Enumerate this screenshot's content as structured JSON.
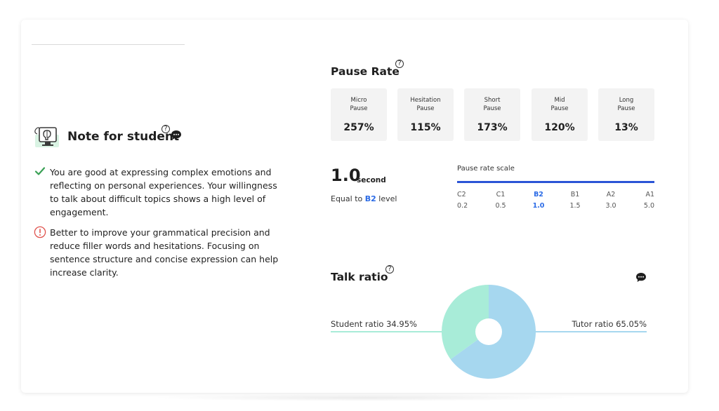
{
  "colors": {
    "accent_blue": "#2b6be6",
    "scale_bar": "#2b55d6",
    "student_color": "#a8ecd8",
    "tutor_color": "#a6d7ef",
    "check_green": "#3aa055",
    "warn_red": "#e0544f"
  },
  "note": {
    "title": "Note for student",
    "icon": "brain-monitor-icon",
    "items": [
      {
        "icon": "check-icon",
        "text": "You are good at expressing complex emotions and reflecting on personal experiences. Your willingness to talk about difficult topics shows a high level of engagement."
      },
      {
        "icon": "exclamation-circle-icon",
        "text": "Better to improve your grammatical precision and reduce filler words and hesitations. Focusing on sentence structure and concise expression can help increase clarity."
      }
    ]
  },
  "pause_rate": {
    "title": "Pause Rate",
    "boxes": [
      {
        "label_line1": "Micro",
        "label_line2": "Pause",
        "value": "257%"
      },
      {
        "label_line1": "Hesitation",
        "label_line2": "Pause",
        "value": "115%"
      },
      {
        "label_line1": "Short",
        "label_line2": "Pause",
        "value": "173%"
      },
      {
        "label_line1": "Mid",
        "label_line2": "Pause",
        "value": "120%"
      },
      {
        "label_line1": "Long",
        "label_line2": "Pause",
        "value": "13%"
      }
    ],
    "seconds_value": "1.0",
    "seconds_unit": "second",
    "equal_prefix": "Equal to",
    "equal_level": "B2",
    "equal_suffix": "level",
    "scale_title": "Pause rate scale",
    "scale": [
      {
        "level": "C2",
        "value": "0.2"
      },
      {
        "level": "C1",
        "value": "0.5"
      },
      {
        "level": "B2",
        "value": "1.0"
      },
      {
        "level": "B1",
        "value": "1.5"
      },
      {
        "level": "A2",
        "value": "3.0"
      },
      {
        "level": "A1",
        "value": "5.0"
      }
    ]
  },
  "talk_ratio": {
    "title": "Talk ratio",
    "student_label": "Student ratio 34.95%",
    "tutor_label": "Tutor ratio 65.05%",
    "student_pct": 34.95,
    "tutor_pct": 65.05
  }
}
